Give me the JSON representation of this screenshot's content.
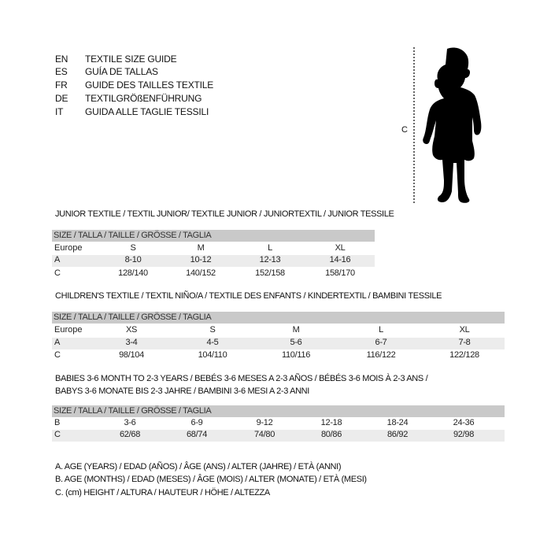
{
  "languages": [
    {
      "code": "EN",
      "text": "TEXTILE SIZE GUIDE"
    },
    {
      "code": "ES",
      "text": "GUÍA DE TALLAS"
    },
    {
      "code": "FR",
      "text": "GUIDE DES TAILLES TEXTILE"
    },
    {
      "code": "DE",
      "text": "TEXTILGRÖßENFÜHRUNG"
    },
    {
      "code": "IT",
      "text": "GUIDA ALLE TAGLIE TESSILI"
    }
  ],
  "figure": {
    "label": "C",
    "icon": "child-silhouette-icon"
  },
  "size_header": "SIZE / TALLA / TAILLE / GRÖSSE / TAGLIA",
  "junior": {
    "title": "JUNIOR TEXTILE / TEXTIL JUNIOR/ TEXTILE JUNIOR / JUNIORTEXTIL / JUNIOR TESSILE",
    "rows": [
      {
        "label": "Europe",
        "values": [
          "S",
          "M",
          "L",
          "XL"
        ]
      },
      {
        "label": "A",
        "values": [
          "8-10",
          "10-12",
          "12-13",
          "14-16"
        ]
      },
      {
        "label": "C",
        "values": [
          "128/140",
          "140/152",
          "152/158",
          "158/170"
        ]
      }
    ]
  },
  "children": {
    "title": "CHILDREN'S TEXTILE / TEXTIL NIÑO/A / TEXTILE DES ENFANTS / KINDERTEXTIL / BAMBINI TESSILE",
    "rows": [
      {
        "label": "Europe",
        "values": [
          "XS",
          "S",
          "M",
          "L",
          "XL"
        ]
      },
      {
        "label": "A",
        "values": [
          "3-4",
          "4-5",
          "5-6",
          "6-7",
          "7-8"
        ]
      },
      {
        "label": "C",
        "values": [
          "98/104",
          "104/110",
          "110/116",
          "116/122",
          "122/128"
        ]
      }
    ]
  },
  "babies": {
    "title_line1": "BABIES 3-6 MONTH TO 2-3 YEARS / BEBÉS 3-6 MESES A 2-3 AÑOS / BÉBÉS 3-6 MOIS À 2-3 ANS /",
    "title_line2": "BABYS 3-6 MONATE BIS 2-3 JAHRE / BAMBINI 3-6 MESI A 2-3 ANNI",
    "rows": [
      {
        "label": "B",
        "values": [
          "3-6",
          "6-9",
          "9-12",
          "12-18",
          "18-24",
          "24-36"
        ]
      },
      {
        "label": "C",
        "values": [
          "62/68",
          "68/74",
          "74/80",
          "80/86",
          "86/92",
          "92/98"
        ]
      }
    ]
  },
  "legend": [
    "A. AGE (YEARS) / EDAD (AÑOS) / ÂGE (ANS) / ALTER (JAHRE) / ETÀ (ANNI)",
    "B. AGE (MONTHS) / EDAD (MESES) / ÂGE (MOIS) / ALTER (MONATE) / ETÀ (MESI)",
    "C. (cm) HEIGHT / ALTURA / HAUTEUR / HÖHE / ALTEZZA"
  ],
  "colors": {
    "header_band": "#c9c9c9",
    "row_shade": "#ececec",
    "text": "#111111"
  }
}
